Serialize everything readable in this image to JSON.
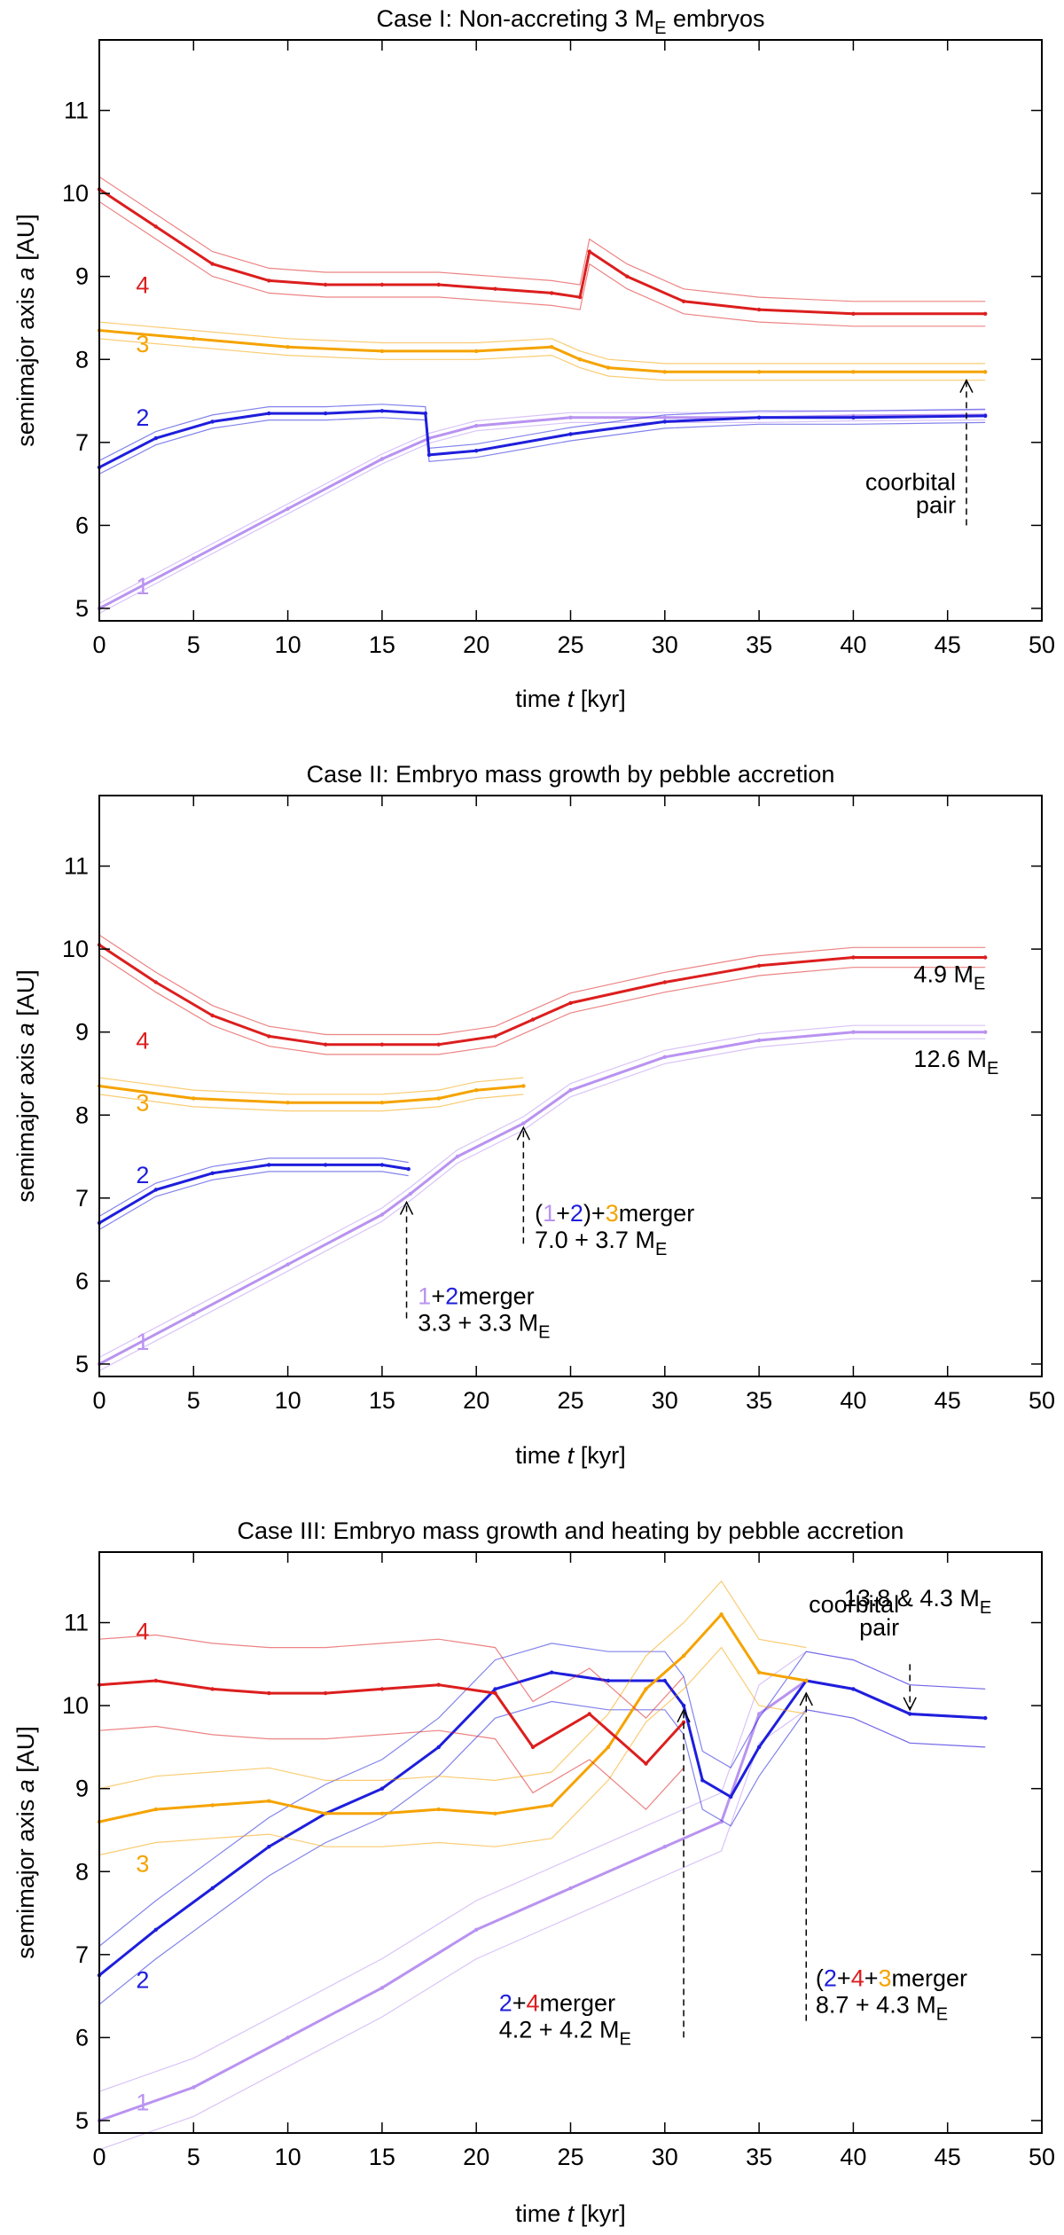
{
  "chart_data": [
    {
      "type": "line",
      "title": "Case I: Non-accreting 3 M",
      "title_subscript": "E",
      "title_suffix": " embryos",
      "xlabel_pre": "time ",
      "xlabel_var": "t",
      "xlabel_post": " [kyr]",
      "ylabel_pre": "semimajor axis ",
      "ylabel_var": "a",
      "ylabel_post": " [AU]",
      "xlim": [
        0,
        50
      ],
      "ylim": [
        4.85,
        11.85
      ],
      "xticks": [
        "0",
        "5",
        "10",
        "15",
        "20",
        "25",
        "30",
        "35",
        "40",
        "45",
        "50"
      ],
      "yticks": [
        "5",
        "6",
        "7",
        "8",
        "9",
        "10",
        "11"
      ],
      "series": [
        {
          "name": "1",
          "color": "#b993f0",
          "x": [
            0,
            5,
            10,
            15,
            17.5,
            20,
            25,
            30,
            35,
            40,
            47
          ],
          "y": [
            5.0,
            5.6,
            6.2,
            6.8,
            7.05,
            7.2,
            7.3,
            7.3,
            7.3,
            7.32,
            7.33
          ],
          "band": 0.06
        },
        {
          "name": "2",
          "color": "#1e1edc",
          "x": [
            0,
            3,
            6,
            9,
            12,
            15,
            17.3,
            17.5,
            20,
            25,
            30,
            35,
            40,
            47
          ],
          "y": [
            6.7,
            7.05,
            7.25,
            7.35,
            7.35,
            7.38,
            7.35,
            6.85,
            6.9,
            7.1,
            7.25,
            7.3,
            7.3,
            7.32
          ],
          "band": 0.08
        },
        {
          "name": "3",
          "color": "#f5a300",
          "x": [
            0,
            5,
            10,
            15,
            20,
            24,
            25.5,
            27,
            30,
            35,
            40,
            47
          ],
          "y": [
            8.35,
            8.25,
            8.15,
            8.1,
            8.1,
            8.15,
            8.0,
            7.9,
            7.85,
            7.85,
            7.85,
            7.85
          ],
          "band": 0.1
        },
        {
          "name": "4",
          "color": "#dc1e1e",
          "x": [
            0,
            3,
            6,
            9,
            12,
            15,
            18,
            21,
            24,
            25.5,
            26,
            28,
            31,
            35,
            40,
            47
          ],
          "y": [
            10.05,
            9.6,
            9.15,
            8.95,
            8.9,
            8.9,
            8.9,
            8.85,
            8.8,
            8.75,
            9.3,
            9.0,
            8.7,
            8.6,
            8.55,
            8.55
          ],
          "band": 0.15
        }
      ],
      "annotations": [
        {
          "lines": [
            "coorbital",
            "pair"
          ],
          "arrow_x": 46,
          "arrow_from_y": 6.0,
          "arrow_to_y": 7.75
        }
      ]
    },
    {
      "type": "line",
      "title": "Case II: Embryo mass growth by pebble accretion",
      "xlabel_pre": "time ",
      "xlabel_var": "t",
      "xlabel_post": " [kyr]",
      "ylabel_pre": "semimajor axis ",
      "ylabel_var": "a",
      "ylabel_post": " [AU]",
      "xlim": [
        0,
        50
      ],
      "ylim": [
        4.85,
        11.85
      ],
      "xticks": [
        "0",
        "5",
        "10",
        "15",
        "20",
        "25",
        "30",
        "35",
        "40",
        "45",
        "50"
      ],
      "yticks": [
        "5",
        "6",
        "7",
        "8",
        "9",
        "10",
        "11"
      ],
      "series": [
        {
          "name": "1",
          "color": "#b993f0",
          "x": [
            0,
            5,
            10,
            15,
            16.5,
            19,
            22.5,
            25,
            30,
            35,
            40,
            47
          ],
          "y": [
            5.0,
            5.6,
            6.2,
            6.8,
            7.05,
            7.5,
            7.9,
            8.3,
            8.7,
            8.9,
            9.0,
            9.0
          ],
          "band": 0.08
        },
        {
          "name": "2",
          "color": "#1e1edc",
          "x": [
            0,
            3,
            6,
            9,
            12,
            15,
            16.4
          ],
          "y": [
            6.7,
            7.1,
            7.3,
            7.4,
            7.4,
            7.4,
            7.35
          ],
          "band": 0.08
        },
        {
          "name": "3",
          "color": "#f5a300",
          "x": [
            0,
            5,
            10,
            15,
            18,
            20,
            22.5
          ],
          "y": [
            8.35,
            8.2,
            8.15,
            8.15,
            8.2,
            8.3,
            8.35
          ],
          "band": 0.1
        },
        {
          "name": "4",
          "color": "#dc1e1e",
          "x": [
            0,
            3,
            6,
            9,
            12,
            15,
            18,
            21,
            23,
            25,
            30,
            35,
            40,
            47
          ],
          "y": [
            10.05,
            9.6,
            9.2,
            8.95,
            8.85,
            8.85,
            8.85,
            8.95,
            9.15,
            9.35,
            9.6,
            9.8,
            9.9,
            9.9
          ],
          "band": 0.12
        }
      ],
      "annotations": [
        {
          "text": "4.9 M",
          "sub": "E",
          "x": 43.2,
          "y": 9.6
        },
        {
          "text": "12.6 M",
          "sub": "E",
          "x": 43.2,
          "y": 8.58
        },
        {
          "parts": [
            {
              "t": "1",
              "c": "#b993f0"
            },
            {
              "t": "+",
              "c": "#000000"
            },
            {
              "t": "2",
              "c": "#1e1edc"
            },
            {
              "t": "merger",
              "c": "#000000"
            }
          ],
          "line2": "3.3 + 3.3 M",
          "line2_sub": "E",
          "arrow_x": 16.3,
          "arrow_from_y": 5.55,
          "arrow_to_y": 6.95,
          "text_x": 16.9,
          "text_y": 5.72
        },
        {
          "parts": [
            {
              "t": "(",
              "c": "#000000"
            },
            {
              "t": "1",
              "c": "#b993f0"
            },
            {
              "t": "+",
              "c": "#000000"
            },
            {
              "t": "2",
              "c": "#1e1edc"
            },
            {
              "t": ")+",
              "c": "#000000"
            },
            {
              "t": "3",
              "c": "#f5a300"
            },
            {
              "t": "merger",
              "c": "#000000"
            }
          ],
          "line2": "7.0 + 3.7 M",
          "line2_sub": "E",
          "arrow_x": 22.5,
          "arrow_from_y": 6.45,
          "arrow_to_y": 7.85,
          "text_x": 23.1,
          "text_y": 6.72
        }
      ]
    },
    {
      "type": "line",
      "title": "Case III: Embryo mass growth and heating by pebble accretion",
      "xlabel_pre": "time ",
      "xlabel_var": "t",
      "xlabel_post": " [kyr]",
      "ylabel_pre": "semimajor axis ",
      "ylabel_var": "a",
      "ylabel_post": " [AU]",
      "xlim": [
        0,
        50
      ],
      "ylim": [
        4.85,
        11.85
      ],
      "xticks": [
        "0",
        "5",
        "10",
        "15",
        "20",
        "25",
        "30",
        "35",
        "40",
        "45",
        "50"
      ],
      "yticks": [
        "5",
        "6",
        "7",
        "8",
        "9",
        "10",
        "11"
      ],
      "series": [
        {
          "name": "1",
          "color": "#b993f0",
          "x": [
            0,
            5,
            10,
            15,
            20,
            25,
            30,
            33,
            35,
            37.5,
            40,
            43,
            47
          ],
          "y": [
            5.0,
            5.4,
            6.0,
            6.6,
            7.3,
            7.8,
            8.3,
            8.6,
            9.9,
            10.3,
            10.2,
            9.9,
            9.85
          ],
          "band": 0.35
        },
        {
          "name": "2",
          "color": "#1e1edc",
          "x": [
            0,
            3,
            6,
            9,
            12,
            15,
            18,
            21,
            24,
            27,
            30,
            31,
            32,
            33.5,
            35,
            37.5,
            40,
            43,
            47
          ],
          "y": [
            6.75,
            7.3,
            7.8,
            8.3,
            8.7,
            9.0,
            9.5,
            10.2,
            10.4,
            10.3,
            10.3,
            10.0,
            9.1,
            8.9,
            9.5,
            10.3,
            10.2,
            9.9,
            9.85
          ],
          "band": 0.35
        },
        {
          "name": "3",
          "color": "#f5a300",
          "x": [
            0,
            3,
            6,
            9,
            12,
            15,
            18,
            21,
            24,
            27,
            29,
            31,
            33,
            35,
            37.5
          ],
          "y": [
            8.6,
            8.75,
            8.8,
            8.85,
            8.7,
            8.7,
            8.75,
            8.7,
            8.8,
            9.5,
            10.2,
            10.6,
            11.1,
            10.4,
            10.3
          ],
          "band": 0.4
        },
        {
          "name": "4",
          "color": "#dc1e1e",
          "x": [
            0,
            3,
            6,
            9,
            12,
            15,
            18,
            21,
            23,
            26,
            29,
            31
          ],
          "y": [
            10.25,
            10.3,
            10.2,
            10.15,
            10.15,
            10.2,
            10.25,
            10.15,
            9.5,
            9.9,
            9.3,
            9.8
          ],
          "band": 0.55
        }
      ],
      "annotations": [
        {
          "parts": [
            {
              "t": "13.8 & 4.3 M",
              "c": "#000000"
            }
          ],
          "sub": "E",
          "x": 39.5,
          "y": 11.2
        },
        {
          "lines": [
            "coorbital",
            "pair"
          ],
          "arrow_x": 43,
          "arrow_from_y": 10.5,
          "arrow_to_y": 9.95
        },
        {
          "parts": [
            {
              "t": "2",
              "c": "#1e1edc"
            },
            {
              "t": "+",
              "c": "#000000"
            },
            {
              "t": "4",
              "c": "#dc1e1e"
            },
            {
              "t": "merger",
              "c": "#000000"
            }
          ],
          "line2": "4.2 + 4.2 M",
          "line2_sub": "E",
          "arrow_x": 31,
          "arrow_from_y": 6.0,
          "arrow_to_y": 9.95,
          "text_x": 21.2,
          "text_y": 6.32
        },
        {
          "parts": [
            {
              "t": "(",
              "c": "#000000"
            },
            {
              "t": "2",
              "c": "#1e1edc"
            },
            {
              "t": "+",
              "c": "#000000"
            },
            {
              "t": "4",
              "c": "#dc1e1e"
            },
            {
              "t": "+",
              "c": "#000000"
            },
            {
              "t": "3",
              "c": "#f5a300"
            },
            {
              "t": "merger",
              "c": "#000000"
            }
          ],
          "line2": "8.7 + 4.3 M",
          "line2_sub": "E",
          "arrow_x": 37.5,
          "arrow_from_y": 6.2,
          "arrow_to_y": 10.15,
          "text_x": 38.0,
          "text_y": 6.62
        }
      ]
    }
  ]
}
